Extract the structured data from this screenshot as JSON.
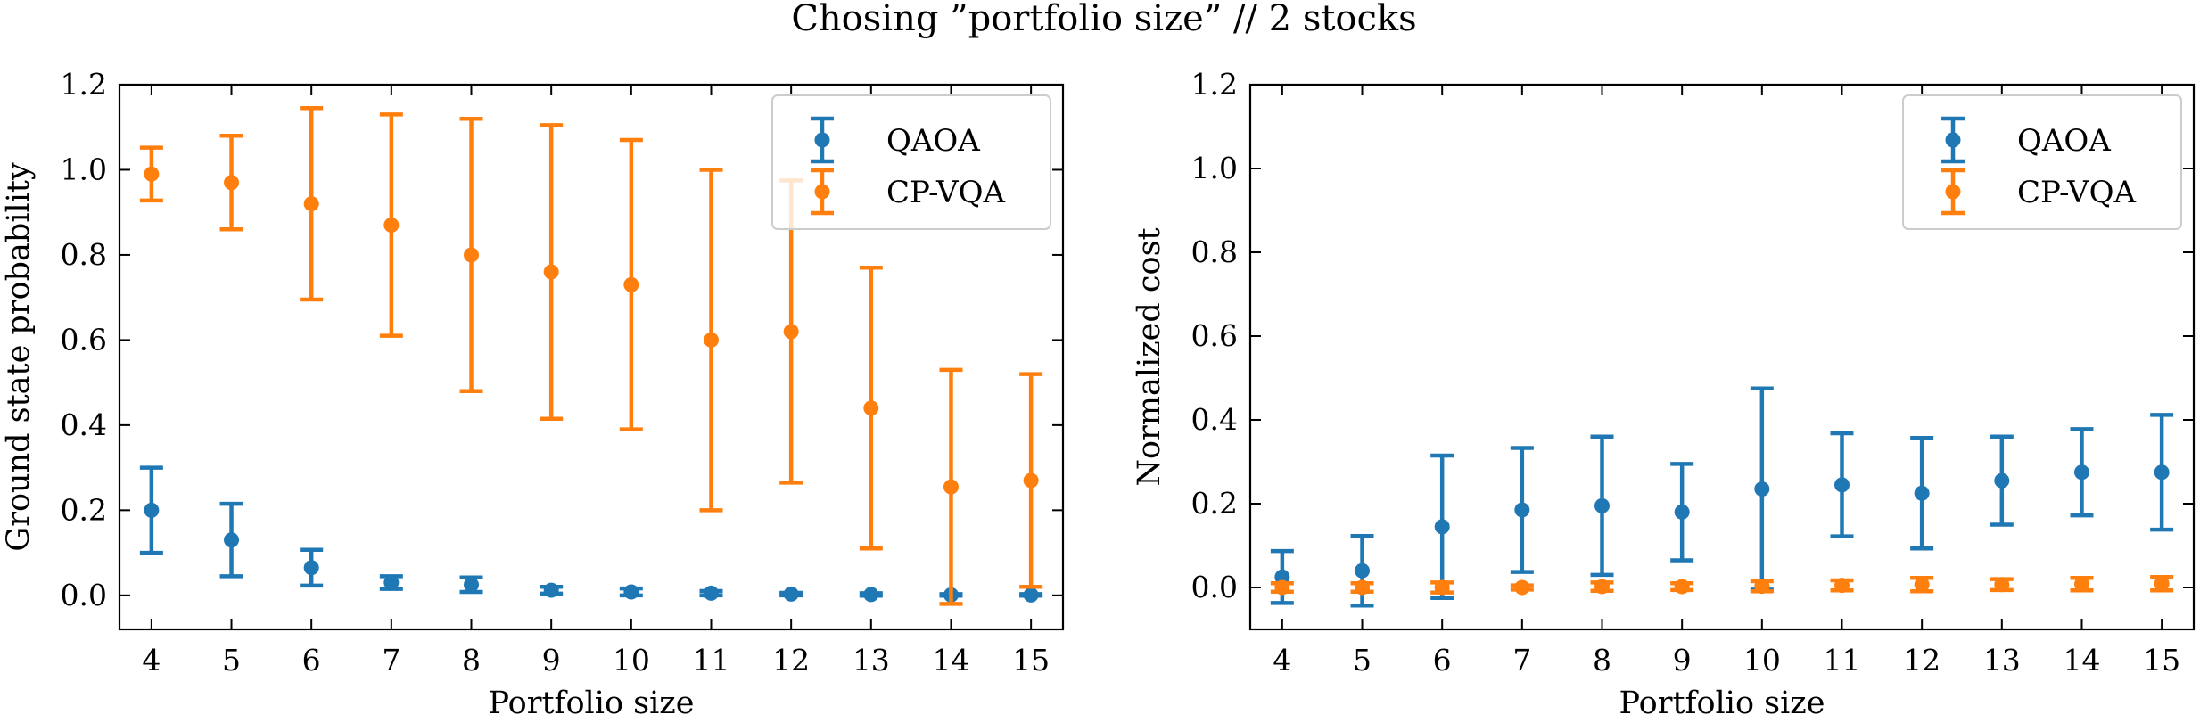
{
  "figure": {
    "title": "Chosing ”portfolio size” // 2 stocks"
  },
  "colors": {
    "QAOA": "#1f77b4",
    "CP-VQA": "#ff7f0e",
    "axes": "#000000"
  },
  "chart_data": [
    {
      "type": "scatter",
      "error_bars": true,
      "xlabel": "Portfolio size",
      "ylabel": "Ground state probability",
      "xlim": [
        3.6,
        15.4
      ],
      "ylim": [
        -0.08,
        1.2
      ],
      "x_ticks": [
        4,
        5,
        6,
        7,
        8,
        9,
        10,
        11,
        12,
        13,
        14,
        15
      ],
      "x_tick_labels": [
        "4",
        "5",
        "6",
        "7",
        "8",
        "9",
        "10",
        "11",
        "12",
        "13",
        "14",
        "15"
      ],
      "y_ticks": [
        0.0,
        0.2,
        0.4,
        0.6,
        0.8,
        1.0,
        1.2
      ],
      "y_tick_labels": [
        "0.0",
        "0.2",
        "0.4",
        "0.6",
        "0.8",
        "1.0",
        "1.2"
      ],
      "legend_position": "top-right",
      "series": [
        {
          "name": "QAOA",
          "x": [
            4,
            5,
            6,
            7,
            8,
            9,
            10,
            11,
            12,
            13,
            14,
            15
          ],
          "y": [
            0.2,
            0.13,
            0.065,
            0.03,
            0.025,
            0.012,
            0.008,
            0.005,
            0.003,
            0.002,
            0.001,
            0.001
          ],
          "error": [
            0.1,
            0.085,
            0.042,
            0.015,
            0.017,
            0.008,
            0.008,
            0.005,
            0.003,
            0.003,
            0.002,
            0.002
          ]
        },
        {
          "name": "CP-VQA",
          "x": [
            4,
            5,
            6,
            7,
            8,
            9,
            10,
            11,
            12,
            13,
            14,
            15
          ],
          "y": [
            0.99,
            0.97,
            0.92,
            0.87,
            0.8,
            0.76,
            0.73,
            0.6,
            0.62,
            0.44,
            0.255,
            0.27
          ],
          "error": [
            0.062,
            0.11,
            0.225,
            0.26,
            0.32,
            0.345,
            0.34,
            0.4,
            0.355,
            0.33,
            0.275,
            0.25
          ]
        }
      ]
    },
    {
      "type": "scatter",
      "error_bars": true,
      "xlabel": "Portfolio size",
      "ylabel": "Normalized cost",
      "xlim": [
        3.6,
        15.4
      ],
      "ylim": [
        -0.1,
        1.2
      ],
      "x_ticks": [
        4,
        5,
        6,
        7,
        8,
        9,
        10,
        11,
        12,
        13,
        14,
        15
      ],
      "x_tick_labels": [
        "4",
        "5",
        "6",
        "7",
        "8",
        "9",
        "10",
        "11",
        "12",
        "13",
        "14",
        "15"
      ],
      "y_ticks": [
        0.0,
        0.2,
        0.4,
        0.6,
        0.8,
        1.0,
        1.2
      ],
      "y_tick_labels": [
        "0.0",
        "0.2",
        "0.4",
        "0.6",
        "0.8",
        "1.0",
        "1.2"
      ],
      "legend_position": "top-right",
      "series": [
        {
          "name": "QAOA",
          "x": [
            4,
            5,
            6,
            7,
            8,
            9,
            10,
            11,
            12,
            13,
            14,
            15
          ],
          "y": [
            0.025,
            0.04,
            0.145,
            0.185,
            0.195,
            0.18,
            0.235,
            0.245,
            0.225,
            0.255,
            0.275,
            0.275
          ],
          "error": [
            0.062,
            0.083,
            0.17,
            0.148,
            0.165,
            0.115,
            0.24,
            0.123,
            0.132,
            0.105,
            0.103,
            0.137
          ]
        },
        {
          "name": "CP-VQA",
          "x": [
            4,
            5,
            6,
            7,
            8,
            9,
            10,
            11,
            12,
            13,
            14,
            15
          ],
          "y": [
            0.0,
            0.0,
            0.0,
            0.0,
            0.002,
            0.002,
            0.003,
            0.005,
            0.007,
            0.007,
            0.008,
            0.009
          ],
          "error": [
            0.01,
            0.01,
            0.012,
            0.005,
            0.01,
            0.008,
            0.012,
            0.012,
            0.016,
            0.013,
            0.015,
            0.016
          ]
        }
      ]
    }
  ]
}
